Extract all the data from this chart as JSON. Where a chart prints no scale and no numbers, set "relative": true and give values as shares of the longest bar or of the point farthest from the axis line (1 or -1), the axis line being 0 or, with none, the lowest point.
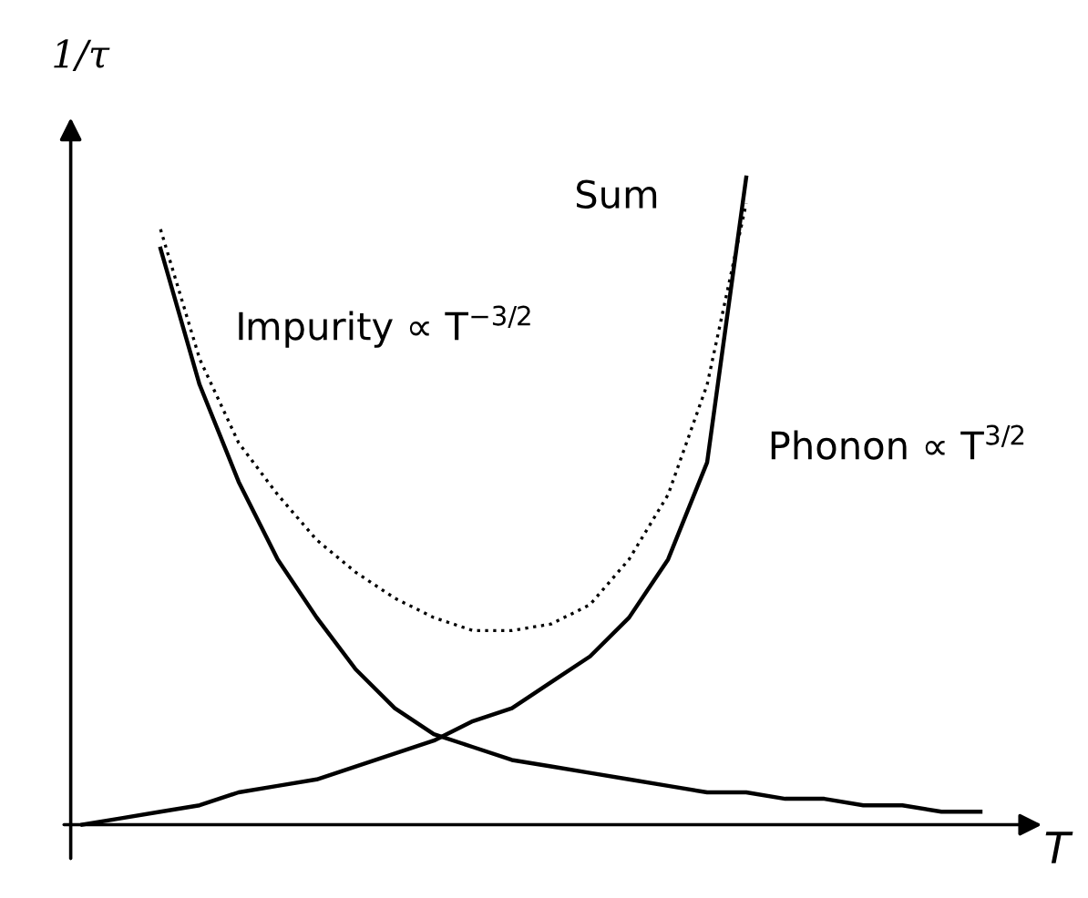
{
  "chart_data": {
    "type": "line",
    "relative": true,
    "xlabel": "T",
    "ylabel": "1/τ",
    "categories": [
      null,
      null,
      null,
      null,
      null,
      null,
      null,
      null,
      null,
      null,
      null,
      null,
      null,
      null,
      null,
      null,
      null,
      null,
      null,
      null,
      null,
      null,
      null,
      null,
      null
    ],
    "series": [
      {
        "name": "Impurity ∝ T$^{−3/2}$",
        "color": "#000000",
        "line_style": "solid",
        "values": [
          null,
          null,
          0.89,
          0.68,
          0.53,
          0.41,
          0.32,
          0.24,
          0.18,
          0.14,
          0.12,
          0.1,
          0.09,
          0.08,
          0.07,
          0.06,
          0.05,
          0.05,
          0.04,
          0.04,
          0.03,
          0.03,
          0.02,
          0.02,
          null
        ]
      },
      {
        "name": "Phonon ∝ T$^{3/2}$",
        "color": "#000000",
        "line_style": "solid",
        "values": [
          0,
          0.01,
          0.02,
          0.03,
          0.05,
          0.06,
          0.07,
          0.09,
          0.11,
          0.13,
          0.16,
          0.18,
          0.22,
          0.26,
          0.32,
          0.41,
          0.56,
          1.0,
          null,
          null,
          null,
          null,
          null,
          null,
          null
        ]
      },
      {
        "name": "Sum",
        "color": "#000000",
        "line_style": "dotted",
        "values": [
          null,
          null,
          0.92,
          0.72,
          0.59,
          0.51,
          0.44,
          0.39,
          0.35,
          0.32,
          0.3,
          0.3,
          0.31,
          0.34,
          0.41,
          0.51,
          0.68,
          0.96,
          null,
          null,
          null,
          null,
          null,
          null,
          null
        ]
      }
    ],
    "legend": false,
    "grid": false,
    "marker": "none"
  }
}
